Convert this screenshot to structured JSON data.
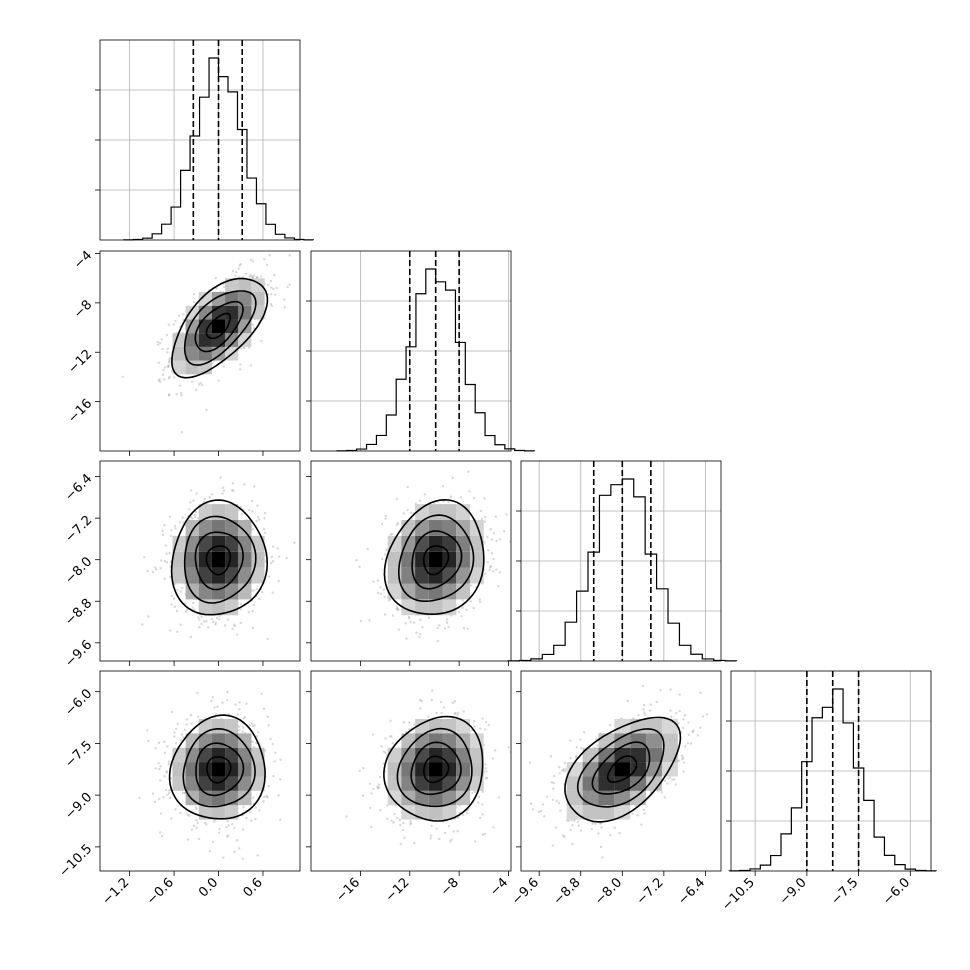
{
  "chart_data": {
    "type": "corner",
    "title": "",
    "n_params": 4,
    "parameters": [
      {
        "label": "",
        "range": [
          -1.6,
          1.1
        ],
        "ticks": [
          -1.2,
          -0.6,
          0.0,
          0.6
        ],
        "tick_labels": [
          "-1.2",
          "-0.6",
          "0.0",
          "0.6"
        ],
        "quantiles": [
          -0.34,
          0.0,
          0.32
        ],
        "mean": 0.0,
        "sd": 0.32
      },
      {
        "label": "",
        "range": [
          -20.0,
          -3.8
        ],
        "ticks": [
          -16,
          -12,
          -8,
          -4
        ],
        "tick_labels": [
          "-16",
          "-12",
          "-8",
          "-4"
        ],
        "quantiles": [
          -12.0,
          -9.9,
          -8.0
        ],
        "mean": -9.9,
        "sd": 2.0
      },
      {
        "label": "",
        "range": [
          -9.95,
          -6.1
        ],
        "ticks": [
          -9.6,
          -8.8,
          -8.0,
          -7.2,
          -6.4
        ],
        "tick_labels": [
          "-9.6",
          "-8.8",
          "-8.0",
          "-7.2",
          "-6.4"
        ],
        "quantiles": [
          -8.55,
          -8.0,
          -7.45
        ],
        "mean": -8.0,
        "sd": 0.55
      },
      {
        "label": "",
        "range": [
          -11.2,
          -5.4
        ],
        "ticks": [
          -10.5,
          -9.0,
          -7.5,
          -6.0
        ],
        "tick_labels": [
          "-10.5",
          "-9.0",
          "-7.5",
          "-6.0"
        ],
        "quantiles": [
          -9.0,
          -8.25,
          -7.5
        ],
        "mean": -8.25,
        "sd": 0.75
      }
    ],
    "correlations": [
      {
        "i": 1,
        "j": 0,
        "rho": 0.6
      },
      {
        "i": 2,
        "j": 0,
        "rho": 0.05
      },
      {
        "i": 2,
        "j": 1,
        "rho": 0.15
      },
      {
        "i": 3,
        "j": 0,
        "rho": 0.05
      },
      {
        "i": 3,
        "j": 1,
        "rho": 0.1
      },
      {
        "i": 3,
        "j": 2,
        "rho": 0.5
      }
    ],
    "contour_levels_sigma": [
      0.5,
      1.0,
      1.5,
      2.0
    ],
    "histogram_bins": 20,
    "grid": true,
    "legend": "none"
  }
}
